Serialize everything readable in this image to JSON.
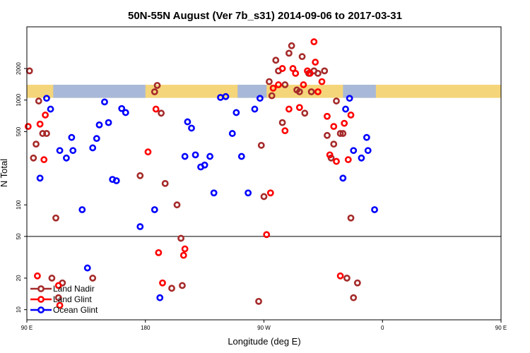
{
  "chart_data": {
    "type": "scatter",
    "title": "50N-55N August (Ver 7b_s31)   2014-09-06 to 2017-03-31",
    "xlabel": "Longitude (deg E)",
    "ylabel": "N Total",
    "xlim": [
      -180,
      180
    ],
    "ylim": [
      8,
      5000
    ],
    "y_scale": "log",
    "x_ticks": [
      {
        "value": -180,
        "label": "90 E"
      },
      {
        "value": -90,
        "label": "180"
      },
      {
        "value": 0,
        "label": "90 W"
      },
      {
        "value": 90,
        "label": "0"
      },
      {
        "value": 180,
        "label": "90 E"
      }
    ],
    "y_ticks": [
      {
        "value": 10,
        "label": "10"
      },
      {
        "value": 20,
        "label": "20"
      },
      {
        "value": 50,
        "label": "50"
      },
      {
        "value": 100,
        "label": "100"
      },
      {
        "value": 500,
        "label": "500"
      },
      {
        "value": 1000,
        "label": "1000"
      },
      {
        "value": 2000,
        "label": "2000"
      }
    ],
    "reference_line": 50,
    "land_mask_band": [
      1050,
      1400
    ],
    "legend_position": "bottom-left",
    "series": [
      {
        "name": "Land Nadir",
        "color": "#a52a2a",
        "points": [
          [
            -178,
            1900
          ],
          [
            -175,
            280
          ],
          [
            -173,
            380
          ],
          [
            -171,
            980
          ],
          [
            -168,
            480
          ],
          [
            -165,
            480
          ],
          [
            -161,
            20
          ],
          [
            -158,
            75
          ],
          [
            -156,
            13
          ],
          [
            -153,
            18
          ],
          [
            -130,
            20
          ],
          [
            -94,
            190
          ],
          [
            -83,
            1200
          ],
          [
            -81,
            1380
          ],
          [
            -78,
            750
          ],
          [
            -75,
            160
          ],
          [
            -70,
            16
          ],
          [
            -66,
            100
          ],
          [
            -63,
            48
          ],
          [
            -62,
            17
          ],
          [
            -4,
            12
          ],
          [
            -2,
            370
          ],
          [
            0,
            120
          ],
          [
            4,
            1500
          ],
          [
            6,
            1100
          ],
          [
            9,
            2400
          ],
          [
            11,
            1900
          ],
          [
            14,
            610
          ],
          [
            16,
            1400
          ],
          [
            19,
            2800
          ],
          [
            21,
            3300
          ],
          [
            25,
            1250
          ],
          [
            27,
            1200
          ],
          [
            29,
            2600
          ],
          [
            31,
            750
          ],
          [
            34,
            1800
          ],
          [
            36,
            1200
          ],
          [
            38,
            1900
          ],
          [
            41,
            1800
          ],
          [
            46,
            1900
          ],
          [
            48,
            460
          ],
          [
            51,
            280
          ],
          [
            53,
            380
          ],
          [
            55,
            980
          ],
          [
            58,
            480
          ],
          [
            60,
            480
          ],
          [
            63,
            20
          ],
          [
            66,
            75
          ],
          [
            68,
            13
          ],
          [
            71,
            18
          ]
        ]
      },
      {
        "name": "Land Glint",
        "color": "#ff0000",
        "points": [
          [
            -179,
            560
          ],
          [
            -172,
            21
          ],
          [
            -170,
            590
          ],
          [
            -167,
            270
          ],
          [
            -166,
            720
          ],
          [
            -156,
            17
          ],
          [
            -155,
            11
          ],
          [
            -88,
            320
          ],
          [
            -82,
            820
          ],
          [
            -80,
            35
          ],
          [
            -77,
            18
          ],
          [
            -61,
            33
          ],
          [
            -60,
            38
          ],
          [
            2,
            52
          ],
          [
            5,
            130
          ],
          [
            7,
            1300
          ],
          [
            11,
            1400
          ],
          [
            14,
            2000
          ],
          [
            16,
            510
          ],
          [
            19,
            820
          ],
          [
            22,
            2000
          ],
          [
            24,
            1800
          ],
          [
            27,
            850
          ],
          [
            30,
            1400
          ],
          [
            33,
            1900
          ],
          [
            35,
            1800
          ],
          [
            38,
            3600
          ],
          [
            39,
            2300
          ],
          [
            41,
            1200
          ],
          [
            44,
            1500
          ],
          [
            48,
            700
          ],
          [
            50,
            300
          ],
          [
            53,
            560
          ],
          [
            55,
            260
          ],
          [
            58,
            21
          ],
          [
            61,
            600
          ],
          [
            64,
            270
          ],
          [
            66,
            720
          ]
        ]
      },
      {
        "name": "Ocean Glint",
        "color": "#0000ff",
        "points": [
          [
            -170,
            180
          ],
          [
            -165,
            1040
          ],
          [
            -162,
            820
          ],
          [
            -155,
            330
          ],
          [
            -150,
            280
          ],
          [
            -146,
            440
          ],
          [
            -145,
            330
          ],
          [
            -138,
            90
          ],
          [
            -134,
            25
          ],
          [
            -130,
            350
          ],
          [
            -127,
            430
          ],
          [
            -125,
            580
          ],
          [
            -121,
            960
          ],
          [
            -118,
            610
          ],
          [
            -115,
            175
          ],
          [
            -112,
            170
          ],
          [
            -108,
            830
          ],
          [
            -105,
            760
          ],
          [
            -94,
            62
          ],
          [
            -83,
            90
          ],
          [
            -79,
            13
          ],
          [
            -60,
            290
          ],
          [
            -58,
            620
          ],
          [
            -55,
            540
          ],
          [
            -52,
            300
          ],
          [
            -48,
            230
          ],
          [
            -45,
            240
          ],
          [
            -41,
            290
          ],
          [
            -38,
            130
          ],
          [
            -33,
            1060
          ],
          [
            -29,
            1080
          ],
          [
            -24,
            480
          ],
          [
            -21,
            760
          ],
          [
            -17,
            290
          ],
          [
            -12,
            130
          ],
          [
            -7,
            820
          ],
          [
            -3,
            1040
          ],
          [
            60,
            180
          ],
          [
            62,
            820
          ],
          [
            65,
            1040
          ],
          [
            68,
            330
          ],
          [
            74,
            280
          ],
          [
            78,
            440
          ],
          [
            79,
            330
          ],
          [
            84,
            90
          ]
        ]
      }
    ]
  },
  "legend": {
    "items": [
      {
        "label": "Land Nadir",
        "color": "#a52a2a"
      },
      {
        "label": "Land Glint",
        "color": "#ff0000"
      },
      {
        "label": "Ocean Glint",
        "color": "#0000ff"
      }
    ]
  }
}
